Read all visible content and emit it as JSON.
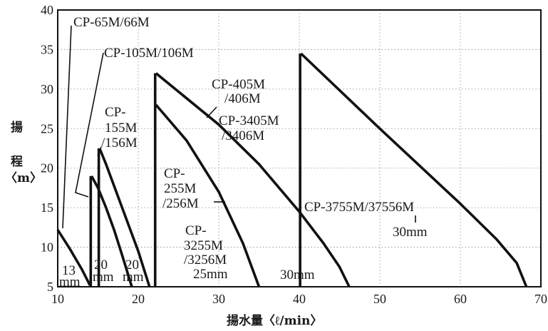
{
  "chart_data": {
    "type": "line",
    "title": "",
    "xlabel": "揚水量〈ℓ/min〉",
    "ylabel": [
      "揚",
      "程",
      "〈m〉"
    ],
    "xlim": [
      10,
      70
    ],
    "ylim": [
      5,
      40
    ],
    "x_ticks": [
      "10",
      "20",
      "30",
      "40",
      "50",
      "60",
      "70"
    ],
    "y_ticks": [
      "5",
      "10",
      "15",
      "20",
      "25",
      "30",
      "35",
      "40"
    ],
    "grid": true,
    "series": [
      {
        "name": "CP-65M/66M",
        "x": [
          10,
          11.5,
          13,
          14
        ],
        "y": [
          12.2,
          9.8,
          7.2,
          5.2
        ]
      },
      {
        "name": "CP-105M/106M",
        "x": [
          14.2,
          15,
          16,
          17,
          18,
          19.2
        ],
        "y": [
          19,
          17.5,
          15,
          12.2,
          9,
          5
        ]
      },
      {
        "name": "CP-155M/156M",
        "x": [
          15.2,
          16,
          18,
          20,
          21.4
        ],
        "y": [
          22.5,
          20.5,
          15,
          9.5,
          5
        ]
      },
      {
        "name": "CP-255M/256M",
        "x": [
          22.2,
          26,
          30,
          33,
          35
        ],
        "y": [
          28,
          23.5,
          17,
          10.5,
          5
        ]
      },
      {
        "name": "CP-405M/406M CP-3405M/3406M",
        "x": [
          22.2,
          30,
          35,
          40,
          43,
          45,
          46.2
        ],
        "y": [
          32,
          25.5,
          20.5,
          14.5,
          10.5,
          7.5,
          5
        ]
      },
      {
        "name": "CP-3755M/37556M",
        "x": [
          40.2,
          50,
          60,
          64.5,
          67,
          68.2
        ],
        "y": [
          34.5,
          25,
          15.5,
          11,
          8,
          5
        ]
      }
    ],
    "verticals": [
      {
        "x": 14.1,
        "y": [
          5,
          19
        ]
      },
      {
        "x": 15.1,
        "y": [
          5,
          22.5
        ]
      },
      {
        "x": 22.1,
        "y": [
          5,
          32
        ]
      },
      {
        "x": 40.1,
        "y": [
          5,
          34.5
        ]
      }
    ],
    "annotations": {
      "cp65": "CP-65M/66M",
      "cp105": "CP-105M/106M",
      "cp155_1": "CP-",
      "cp155_2": "155M",
      "cp155_3": "/156M",
      "cp405_1": "CP-405M",
      "cp405_2": "/406M",
      "cp3405_1": "CP-3405M",
      "cp3405_2": "/3406M",
      "cp255_1": "CP-",
      "cp255_2": "255M",
      "cp255_3": "/256M",
      "cp3255_1": "CP-",
      "cp3255_2": "3255M",
      "cp3255_3": "/3256M",
      "cp3255_4": "25mm",
      "cp3755": "CP-3755M/37556M",
      "mm30a": "30mm",
      "mm30b": "30mm",
      "mm13a": "13",
      "mm13b": "mm",
      "mm20a_1": "20",
      "mm20a_2": "mm",
      "mm20b_1": "20",
      "mm20b_2": "mm"
    }
  }
}
